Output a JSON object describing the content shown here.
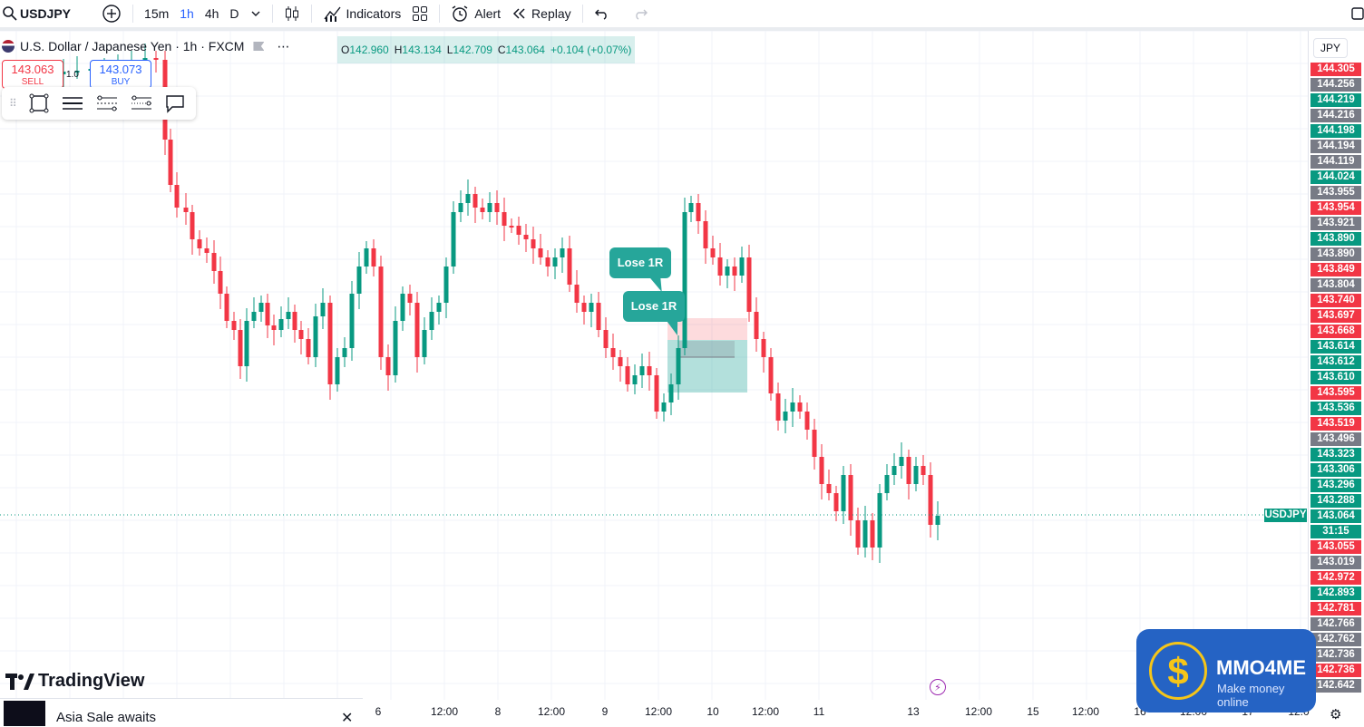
{
  "toolbar": {
    "symbol": "USDJPY",
    "intervals": [
      "15m",
      "1h",
      "4h",
      "D"
    ],
    "active_interval": "1h",
    "indicators_label": "Indicators",
    "alert_label": "Alert",
    "replay_label": "Replay"
  },
  "legend": {
    "title": "U.S. Dollar / Japanese Yen · 1h · FXCM",
    "more": "⋯",
    "open_label": "O",
    "open": "142.960",
    "high_label": "H",
    "high": "143.134",
    "low_label": "L",
    "low": "142.709",
    "close_label": "C",
    "close": "143.064",
    "change": "+0.104 (+0.07%)"
  },
  "trade": {
    "sell_price": "143.063",
    "sell_label": "SELL",
    "spread": "1.0",
    "buy_price": "143.073",
    "buy_label": "BUY"
  },
  "currency_label": "JPY",
  "price_labels": [
    {
      "text": "144.305",
      "kind": "red"
    },
    {
      "text": "144.256",
      "kind": "gray"
    },
    {
      "text": "144.219",
      "kind": "green"
    },
    {
      "text": "144.216",
      "kind": "gray"
    },
    {
      "text": "144.198",
      "kind": "green"
    },
    {
      "text": "144.194",
      "kind": "gray"
    },
    {
      "text": "144.119",
      "kind": "gray"
    },
    {
      "text": "144.024",
      "kind": "green"
    },
    {
      "text": "143.955",
      "kind": "gray"
    },
    {
      "text": "143.954",
      "kind": "red"
    },
    {
      "text": "143.921",
      "kind": "gray"
    },
    {
      "text": "143.890",
      "kind": "green"
    },
    {
      "text": "143.890",
      "kind": "gray"
    },
    {
      "text": "143.849",
      "kind": "red"
    },
    {
      "text": "143.804",
      "kind": "gray"
    },
    {
      "text": "143.740",
      "kind": "red"
    },
    {
      "text": "143.697",
      "kind": "red"
    },
    {
      "text": "143.668",
      "kind": "red"
    },
    {
      "text": "143.614",
      "kind": "green"
    },
    {
      "text": "143.612",
      "kind": "green"
    },
    {
      "text": "143.610",
      "kind": "green"
    },
    {
      "text": "143.595",
      "kind": "red"
    },
    {
      "text": "143.536",
      "kind": "green"
    },
    {
      "text": "143.519",
      "kind": "red"
    },
    {
      "text": "143.496",
      "kind": "gray"
    },
    {
      "text": "143.323",
      "kind": "green"
    },
    {
      "text": "143.306",
      "kind": "green"
    },
    {
      "text": "143.296",
      "kind": "green"
    },
    {
      "text": "143.288",
      "kind": "green"
    },
    {
      "text": "143.064",
      "kind": "green"
    },
    {
      "text": "31:15",
      "kind": "green"
    },
    {
      "text": "143.055",
      "kind": "red"
    },
    {
      "text": "143.019",
      "kind": "gray"
    },
    {
      "text": "142.972",
      "kind": "red"
    },
    {
      "text": "142.893",
      "kind": "green"
    },
    {
      "text": "142.781",
      "kind": "red"
    },
    {
      "text": "142.766",
      "kind": "gray"
    },
    {
      "text": "142.762",
      "kind": "gray"
    },
    {
      "text": "142.736",
      "kind": "gray"
    },
    {
      "text": "142.736",
      "kind": "red"
    },
    {
      "text": "142.642",
      "kind": "gray"
    }
  ],
  "symbol_tag": "USDJPY",
  "time_labels": [
    "6",
    "12:00",
    "8",
    "12:00",
    "9",
    "12:00",
    "10",
    "12:00",
    "11",
    "13",
    "12:00",
    "15",
    "12:00",
    "16",
    "12:00",
    "17",
    "12:0"
  ],
  "callouts": [
    "Lose 1R",
    "Lose 1R"
  ],
  "brand": "TradingView",
  "banner_text": "Asia Sale awaits",
  "watermark": {
    "name": "MMO4ME",
    "tagline": "Make money online"
  },
  "colors": {
    "up": "#089981",
    "down": "#f23645",
    "gray": "#787b86",
    "accent": "#2962ff"
  }
}
